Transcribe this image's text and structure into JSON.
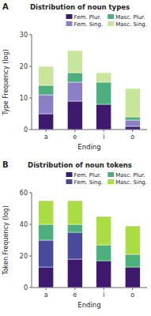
{
  "chart_data": [
    {
      "type": "bar",
      "stacked": true,
      "title": "Distribution of noun types",
      "xlabel": "Ending",
      "ylabel": "Type Frequency (log)",
      "annotations": [
        "A"
      ],
      "categories": [
        "a",
        "e",
        "i",
        "o"
      ],
      "series": [
        {
          "name": "Fem. Plur.",
          "color": "#3D1A6E",
          "values": [
            5,
            9,
            8,
            1
          ]
        },
        {
          "name": "Fem. Sing.",
          "color": "#8B80C8",
          "values": [
            6,
            6,
            0,
            2
          ]
        },
        {
          "name": "Masc. Plur.",
          "color": "#4CAF7D",
          "values": [
            3,
            3,
            7,
            1
          ]
        },
        {
          "name": "Masc. Sing.",
          "color": "#C8E69A",
          "values": [
            6,
            7,
            3,
            9
          ]
        }
      ],
      "ylim": [
        0,
        30
      ],
      "yticks": [
        0,
        10,
        20,
        30
      ],
      "grid": false,
      "legend": "upper right"
    },
    {
      "type": "bar",
      "stacked": true,
      "title": "Distribution of noun tokens",
      "xlabel": "Ending",
      "ylabel": "Token Frequency (log)",
      "annotations": [
        "B"
      ],
      "categories": [
        "a",
        "e",
        "i",
        "o"
      ],
      "series": [
        {
          "name": "Fem. Plur.",
          "color": "#3D1A6E",
          "values": [
            13,
            18,
            17,
            13
          ]
        },
        {
          "name": "Fem. Sing.",
          "color": "#4A4A9C",
          "values": [
            17,
            17,
            0,
            0
          ]
        },
        {
          "name": "Masc. Plur.",
          "color": "#4CAF7D",
          "values": [
            10,
            5,
            10,
            8
          ]
        },
        {
          "name": "Masc. Sing.",
          "color": "#AADD44",
          "values": [
            15,
            15,
            18,
            18
          ]
        }
      ],
      "ylim": [
        0,
        60
      ],
      "yticks": [
        0,
        20,
        40,
        60
      ],
      "grid": false,
      "legend": "upper right"
    }
  ]
}
